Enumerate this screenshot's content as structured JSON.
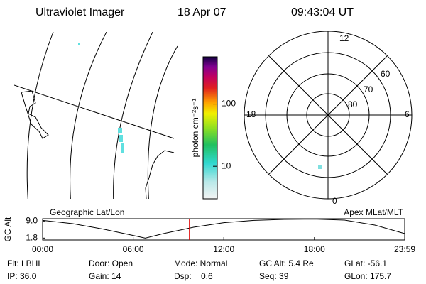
{
  "header": {
    "title": "Ultraviolet Imager",
    "date": "18 Apr 07",
    "time": "09:43:04 UT"
  },
  "colorbar": {
    "label": "photon cm⁻²s⁻¹",
    "lim": [
      3,
      575
    ],
    "ticks": [
      10,
      100
    ],
    "log": true
  },
  "polar": {
    "mlt_labels": [
      "12",
      "18",
      "6",
      "0"
    ],
    "lat_labels": [
      60,
      70,
      80
    ]
  },
  "panel_titles": {
    "left": "Geographic Lat/Lon",
    "right": "Apex MLat/MLT"
  },
  "altitude": {
    "ylabel": "GC Alt",
    "x": [
      0,
      2,
      4,
      6,
      6.8,
      8,
      10,
      12,
      14,
      16,
      18,
      20,
      22,
      23.98
    ],
    "values": [
      9.3,
      7.9,
      5.6,
      2.9,
      1.8,
      3.7,
      6.4,
      8.3,
      9.3,
      9.7,
      9.8,
      9.4,
      7.3,
      3.7
    ],
    "current": 9.718,
    "xlim": [
      0,
      23.98
    ],
    "ylim": [
      1.0,
      10.0
    ],
    "xticks": [
      {
        "value": 0,
        "label": "00:00"
      },
      {
        "value": 6,
        "label": "06:00"
      },
      {
        "value": 12,
        "label": "12:00"
      },
      {
        "value": 18,
        "label": "18:00"
      },
      {
        "value": 23.98,
        "label": "23:59"
      }
    ],
    "yticks": [
      {
        "value": 9,
        "label": "9.0"
      },
      {
        "value": 1.8,
        "label": "1.8"
      }
    ]
  },
  "footer": [
    [
      "Flt: LBHL",
      "Door: Open",
      "Mode: Normal",
      "GC Alt: 5.4 Re",
      "GLat: -56.1"
    ],
    [
      "IP: 36.0",
      "Gain: 14",
      "Dsp:    0.6",
      "Seq: 39",
      "GLon: 175.7"
    ]
  ]
}
